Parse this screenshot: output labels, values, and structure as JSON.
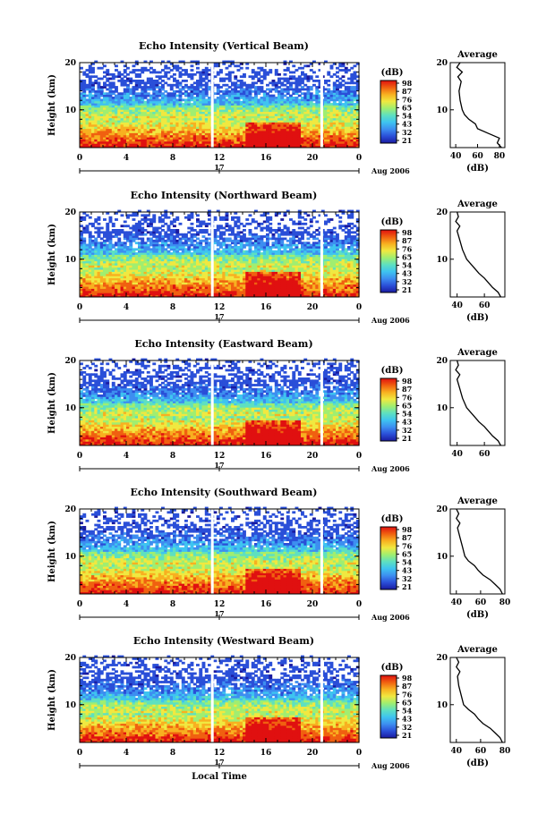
{
  "chart_data": [
    {
      "type": "heatmap",
      "title": "Echo Intensity (Vertical Beam)",
      "ylabel": "Height (km)",
      "ylim": [
        2,
        20
      ],
      "y_ticks": [
        "20",
        "10"
      ],
      "x_ticks": [
        "0",
        "4",
        "8",
        "12",
        "16",
        "20",
        "0"
      ],
      "x_range": [
        0,
        24
      ],
      "date_tick": "17",
      "date_label": "Aug 2006",
      "gaps_hours": [
        11.4,
        20.8
      ],
      "colorbar": {
        "title": "(dB)",
        "ticks": [
          "98",
          "87",
          "76",
          "65",
          "54",
          "43",
          "32",
          "21"
        ]
      },
      "average": {
        "title": "Average",
        "xlabel": "(dB)",
        "x_ticks": [
          "40",
          "60",
          "80"
        ],
        "xlim": [
          35,
          85
        ],
        "y_ticks": [
          "20",
          "10"
        ],
        "profile": {
          "height_km": [
            2,
            3,
            4,
            5,
            6,
            7,
            8,
            9,
            10,
            12,
            14,
            16,
            17,
            18,
            19,
            20
          ],
          "db": [
            82,
            78,
            80,
            70,
            60,
            58,
            52,
            48,
            46,
            44,
            43,
            45,
            42,
            46,
            41,
            44
          ]
        }
      }
    },
    {
      "type": "heatmap",
      "title": "Echo Intensity (Northward Beam)",
      "ylabel": "Height (km)",
      "ylim": [
        2,
        20
      ],
      "y_ticks": [
        "20",
        "10"
      ],
      "x_ticks": [
        "0",
        "4",
        "8",
        "12",
        "16",
        "20",
        "0"
      ],
      "x_range": [
        0,
        24
      ],
      "date_tick": "17",
      "date_label": "Aug 2006",
      "gaps_hours": [
        11.4,
        20.8
      ],
      "colorbar": {
        "title": "(dB)",
        "ticks": [
          "98",
          "87",
          "76",
          "65",
          "54",
          "43",
          "32",
          "21"
        ]
      },
      "average": {
        "title": "Average",
        "xlabel": "(dB)",
        "x_ticks": [
          "40",
          "60"
        ],
        "xlim": [
          35,
          75
        ],
        "y_ticks": [
          "20",
          "10"
        ],
        "profile": {
          "height_km": [
            2,
            3,
            4,
            5,
            6,
            7,
            8,
            9,
            10,
            12,
            14,
            16,
            17,
            18,
            19,
            20
          ],
          "db": [
            72,
            70,
            66,
            63,
            60,
            56,
            53,
            50,
            47,
            44,
            42,
            40,
            42,
            39,
            41,
            40
          ]
        }
      }
    },
    {
      "type": "heatmap",
      "title": "Echo Intensity (Eastward Beam)",
      "ylabel": "Height (km)",
      "ylim": [
        2,
        20
      ],
      "y_ticks": [
        "20",
        "10"
      ],
      "x_ticks": [
        "0",
        "4",
        "8",
        "12",
        "16",
        "20",
        "0"
      ],
      "x_range": [
        0,
        24
      ],
      "date_tick": "17",
      "date_label": "Aug 2006",
      "gaps_hours": [
        11.4,
        20.8
      ],
      "colorbar": {
        "title": "(dB)",
        "ticks": [
          "98",
          "87",
          "76",
          "65",
          "54",
          "43",
          "32",
          "21"
        ]
      },
      "average": {
        "title": "Average",
        "xlabel": "",
        "x_ticks": [
          "40",
          "60"
        ],
        "xlim": [
          35,
          75
        ],
        "y_ticks": [
          "20",
          "10"
        ],
        "profile": {
          "height_km": [
            2,
            3,
            4,
            5,
            6,
            7,
            8,
            9,
            10,
            12,
            14,
            16,
            17,
            18,
            19,
            20
          ],
          "db": [
            72,
            70,
            66,
            63,
            60,
            56,
            53,
            50,
            47,
            44,
            42,
            40,
            42,
            39,
            41,
            40
          ]
        }
      }
    },
    {
      "type": "heatmap",
      "title": "Echo Intensity (Southward Beam)",
      "ylabel": "Height (km)",
      "ylim": [
        2,
        20
      ],
      "y_ticks": [
        "20",
        "10"
      ],
      "x_ticks": [
        "0",
        "4",
        "8",
        "12",
        "16",
        "20",
        "0"
      ],
      "x_range": [
        0,
        24
      ],
      "date_tick": "17",
      "date_label": "Aug 2006",
      "gaps_hours": [
        11.4,
        20.8
      ],
      "colorbar": {
        "title": "(dB)",
        "ticks": [
          "98",
          "87",
          "76",
          "65",
          "54",
          "43",
          "32",
          "21"
        ]
      },
      "average": {
        "title": "Average",
        "xlabel": "(dB)",
        "x_ticks": [
          "40",
          "60",
          "80"
        ],
        "xlim": [
          35,
          80
        ],
        "y_ticks": [
          "20",
          "10"
        ],
        "profile": {
          "height_km": [
            2,
            3,
            4,
            5,
            6,
            7,
            8,
            9,
            10,
            12,
            14,
            16,
            17,
            18,
            19,
            20
          ],
          "db": [
            78,
            76,
            72,
            68,
            62,
            58,
            55,
            50,
            47,
            45,
            43,
            41,
            43,
            40,
            42,
            40
          ]
        }
      }
    },
    {
      "type": "heatmap",
      "title": "Echo Intensity (Westward Beam)",
      "ylabel": "Height (km)",
      "ylim": [
        2,
        20
      ],
      "y_ticks": [
        "20",
        "10"
      ],
      "x_ticks": [
        "0",
        "4",
        "8",
        "12",
        "16",
        "20",
        "0"
      ],
      "x_range": [
        0,
        24
      ],
      "date_tick": "17",
      "date_label": "Aug 2006",
      "xlabel": "Local Time",
      "gaps_hours": [
        11.4,
        20.8
      ],
      "colorbar": {
        "title": "(dB)",
        "ticks": [
          "98",
          "87",
          "76",
          "65",
          "54",
          "43",
          "32",
          "21"
        ]
      },
      "average": {
        "title": "Average",
        "xlabel": "(dB)",
        "x_ticks": [
          "40",
          "60",
          "80"
        ],
        "xlim": [
          35,
          80
        ],
        "y_ticks": [
          "20",
          "10"
        ],
        "profile": {
          "height_km": [
            2,
            3,
            4,
            5,
            6,
            7,
            8,
            9,
            10,
            12,
            14,
            16,
            17,
            18,
            19,
            20
          ],
          "db": [
            78,
            76,
            72,
            68,
            62,
            58,
            55,
            50,
            46,
            44,
            42,
            41,
            43,
            40,
            42,
            40
          ]
        }
      }
    }
  ],
  "colormap": [
    "#1a1aa0",
    "#2a4fd8",
    "#3d8ef0",
    "#3ec4f0",
    "#5ee0c0",
    "#a0ee70",
    "#f0e840",
    "#f8b020",
    "#f06010",
    "#e01010"
  ]
}
